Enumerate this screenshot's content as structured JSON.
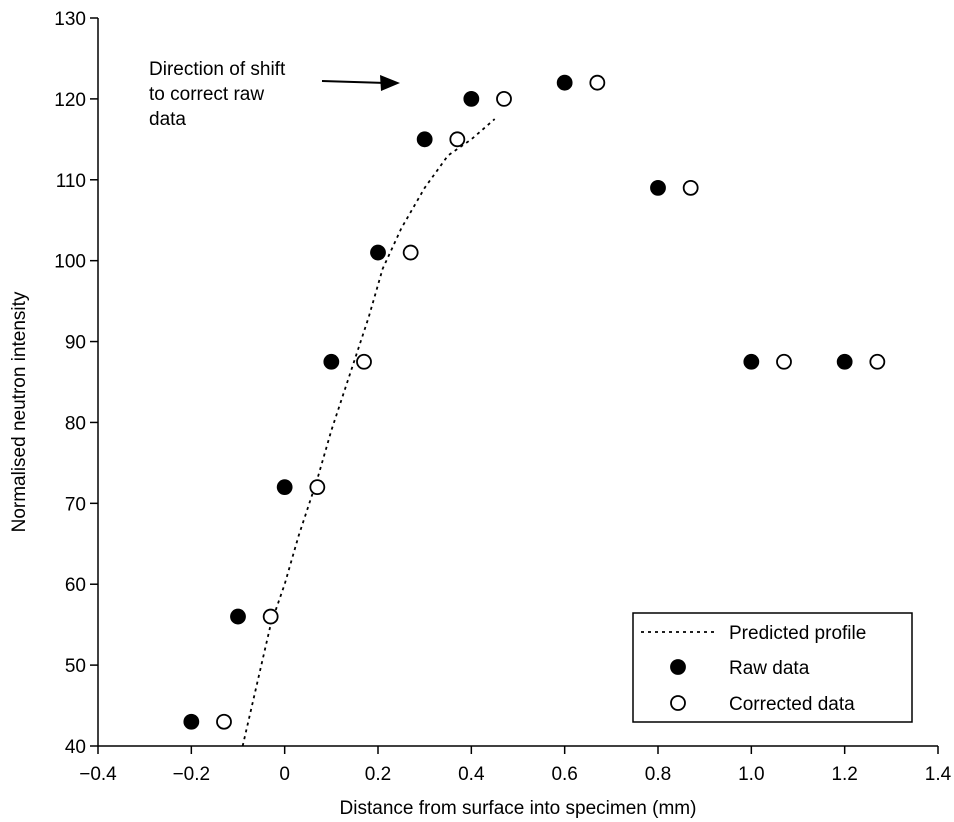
{
  "chart_data": {
    "type": "scatter",
    "title": "",
    "xlabel": "Distance from surface into specimen (mm)",
    "ylabel": "Normalised neutron intensity",
    "xlim": [
      -0.4,
      1.4
    ],
    "ylim": [
      40,
      130
    ],
    "x_ticks": [
      -0.4,
      -0.2,
      0,
      0.2,
      0.4,
      0.6,
      0.8,
      1.0,
      1.2,
      1.4
    ],
    "x_tick_labels": [
      "−0.4",
      "−0.2",
      "0",
      "0.2",
      "0.4",
      "0.6",
      "0.8",
      "1.0",
      "1.2",
      "1.4"
    ],
    "y_ticks": [
      40,
      50,
      60,
      70,
      80,
      90,
      100,
      110,
      120,
      130
    ],
    "y_tick_labels": [
      "40",
      "50",
      "60",
      "70",
      "80",
      "90",
      "100",
      "110",
      "120",
      "130"
    ],
    "grid": false,
    "legend_position": "bottom-right",
    "series": [
      {
        "name": "Predicted profile",
        "kind": "line",
        "style": "dotted",
        "x": [
          -0.09,
          -0.07,
          -0.05,
          -0.03,
          0.0,
          0.03,
          0.07,
          0.1,
          0.14,
          0.18,
          0.21,
          0.25,
          0.3,
          0.35,
          0.4,
          0.45
        ],
        "y": [
          40,
          45,
          50,
          55,
          60,
          66,
          73,
          79,
          86,
          93,
          99,
          104,
          109,
          113,
          115,
          117.5
        ]
      },
      {
        "name": "Raw data",
        "kind": "points",
        "marker": "filled-circle",
        "x": [
          -0.2,
          -0.1,
          0.0,
          0.1,
          0.2,
          0.3,
          0.4,
          0.6,
          0.8,
          1.0,
          1.2
        ],
        "y": [
          43,
          56,
          72,
          87.5,
          101,
          115,
          120,
          122,
          109,
          87.5,
          87.5
        ]
      },
      {
        "name": "Corrected data",
        "kind": "points",
        "marker": "open-circle",
        "x": [
          -0.13,
          -0.03,
          0.07,
          0.17,
          0.27,
          0.37,
          0.47,
          0.67,
          0.87,
          1.07,
          1.27
        ],
        "y": [
          43,
          56,
          72,
          87.5,
          101,
          115,
          120,
          122,
          109,
          87.5,
          87.5
        ]
      }
    ],
    "annotations": [
      {
        "lines": [
          "Direction of shift",
          "to correct raw",
          "data"
        ],
        "arrow": "right"
      }
    ]
  }
}
